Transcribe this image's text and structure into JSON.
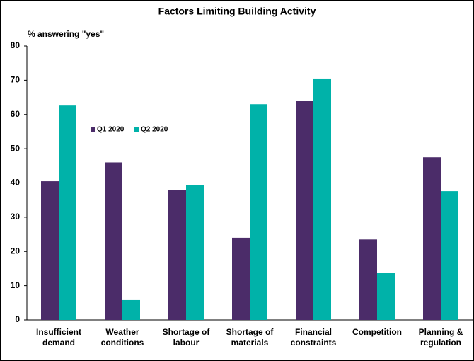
{
  "chart_data": {
    "type": "bar",
    "title": "Factors Limiting Building Activity",
    "y_label": "% answering \"yes\"",
    "categories": [
      "Insufficient demand",
      "Weather conditions",
      "Shortage of labour",
      "Shortage of materials",
      "Financial constraints",
      "Competition",
      "Planning & regulation"
    ],
    "series": [
      {
        "name": "Q1 2020",
        "color": "#4b2c69",
        "values": [
          40.5,
          46,
          38,
          24,
          64,
          23.5,
          47.5
        ]
      },
      {
        "name": "Q2 2020",
        "color": "#00b2a9",
        "values": [
          62.6,
          5.8,
          39.3,
          63,
          70.5,
          13.8,
          37.6
        ]
      }
    ],
    "ylim": [
      0,
      80
    ],
    "yticks": [
      0,
      10,
      20,
      30,
      40,
      50,
      60,
      70,
      80
    ],
    "grid": false,
    "legend": "inside-top-left"
  }
}
